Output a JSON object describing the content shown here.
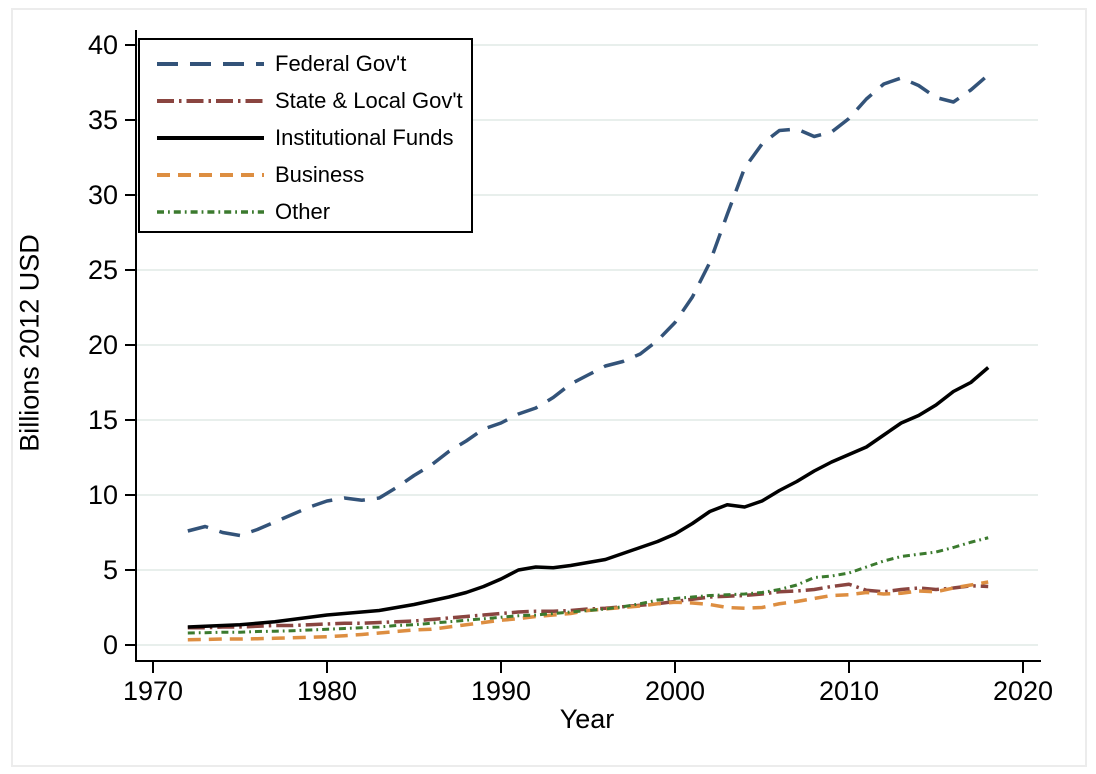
{
  "figure": {
    "x_axis_title": "Year",
    "y_axis_title": "Billions 2012 USD"
  },
  "chart_data": {
    "type": "line",
    "title": "",
    "xlabel": "Year",
    "ylabel": "Billions 2012 USD",
    "xlim": [
      1968,
      2021
    ],
    "ylim": [
      0,
      40
    ],
    "x_ticks": [
      1970,
      1980,
      1990,
      2000,
      2010,
      2020
    ],
    "y_ticks": [
      0,
      5,
      10,
      15,
      20,
      25,
      30,
      35,
      40
    ],
    "grid": "horizontal",
    "gridline_color": "#e8efec",
    "legend_position": "top-left",
    "years": [
      1972,
      1973,
      1974,
      1975,
      1976,
      1977,
      1978,
      1979,
      1980,
      1981,
      1982,
      1983,
      1984,
      1985,
      1986,
      1987,
      1988,
      1989,
      1990,
      1991,
      1992,
      1993,
      1994,
      1995,
      1996,
      1997,
      1998,
      1999,
      2000,
      2001,
      2002,
      2003,
      2004,
      2005,
      2006,
      2007,
      2008,
      2009,
      2010,
      2011,
      2012,
      2013,
      2014,
      2015,
      2016,
      2017,
      2018
    ],
    "series": [
      {
        "name": "Federal Gov't",
        "color": "#335379",
        "dash": "long-dash",
        "values": [
          7.6,
          7.9,
          7.5,
          7.3,
          7.7,
          8.2,
          8.7,
          9.2,
          9.6,
          9.8,
          9.65,
          9.8,
          10.5,
          11.3,
          12.0,
          12.9,
          13.6,
          14.4,
          14.8,
          15.4,
          15.8,
          16.5,
          17.4,
          18.0,
          18.6,
          18.9,
          19.4,
          20.3,
          21.5,
          23.2,
          25.5,
          28.7,
          31.8,
          33.4,
          34.3,
          34.4,
          33.9,
          34.2,
          35.1,
          36.4,
          37.4,
          37.8,
          37.3,
          36.5,
          36.2,
          37.0,
          38.0
        ]
      },
      {
        "name": "State & Local Gov't",
        "color": "#8a4540",
        "dash": "dash-dot",
        "values": [
          1.15,
          1.15,
          1.2,
          1.2,
          1.25,
          1.3,
          1.3,
          1.35,
          1.4,
          1.45,
          1.45,
          1.5,
          1.55,
          1.6,
          1.7,
          1.8,
          1.9,
          2.0,
          2.1,
          2.2,
          2.25,
          2.25,
          2.3,
          2.4,
          2.45,
          2.55,
          2.65,
          2.75,
          2.9,
          3.05,
          3.2,
          3.25,
          3.3,
          3.4,
          3.55,
          3.6,
          3.7,
          3.9,
          4.05,
          3.65,
          3.55,
          3.7,
          3.8,
          3.7,
          3.8,
          3.95,
          3.9
        ]
      },
      {
        "name": "Institutional Funds",
        "color": "#000000",
        "dash": "solid",
        "values": [
          1.2,
          1.25,
          1.3,
          1.35,
          1.45,
          1.55,
          1.7,
          1.85,
          2.0,
          2.1,
          2.2,
          2.3,
          2.5,
          2.7,
          2.95,
          3.2,
          3.5,
          3.9,
          4.4,
          5.0,
          5.2,
          5.15,
          5.3,
          5.5,
          5.7,
          6.1,
          6.5,
          6.9,
          7.4,
          8.1,
          8.9,
          9.35,
          9.2,
          9.6,
          10.3,
          10.9,
          11.6,
          12.2,
          12.7,
          13.2,
          14.0,
          14.8,
          15.3,
          16.0,
          16.9,
          17.5,
          18.5
        ]
      },
      {
        "name": "Business",
        "color": "#dd8e41",
        "dash": "dash",
        "values": [
          0.35,
          0.37,
          0.4,
          0.4,
          0.42,
          0.45,
          0.48,
          0.52,
          0.55,
          0.62,
          0.7,
          0.8,
          0.9,
          1.0,
          1.05,
          1.2,
          1.35,
          1.5,
          1.65,
          1.75,
          1.9,
          2.0,
          2.1,
          2.3,
          2.4,
          2.5,
          2.6,
          2.75,
          2.85,
          2.8,
          2.7,
          2.5,
          2.45,
          2.5,
          2.75,
          2.9,
          3.1,
          3.3,
          3.35,
          3.5,
          3.4,
          3.45,
          3.6,
          3.55,
          3.8,
          4.0,
          4.2
        ]
      },
      {
        "name": "Other",
        "color": "#3b7a2e",
        "dash": "short-dash-dot",
        "values": [
          0.8,
          0.82,
          0.85,
          0.85,
          0.9,
          0.92,
          0.95,
          1.0,
          1.05,
          1.1,
          1.15,
          1.2,
          1.3,
          1.35,
          1.45,
          1.55,
          1.65,
          1.75,
          1.85,
          1.95,
          2.0,
          2.1,
          2.2,
          2.3,
          2.4,
          2.55,
          2.75,
          3.0,
          3.1,
          3.2,
          3.3,
          3.35,
          3.4,
          3.5,
          3.7,
          4.0,
          4.5,
          4.6,
          4.8,
          5.2,
          5.6,
          5.9,
          6.05,
          6.2,
          6.5,
          6.85,
          7.15
        ]
      }
    ]
  }
}
